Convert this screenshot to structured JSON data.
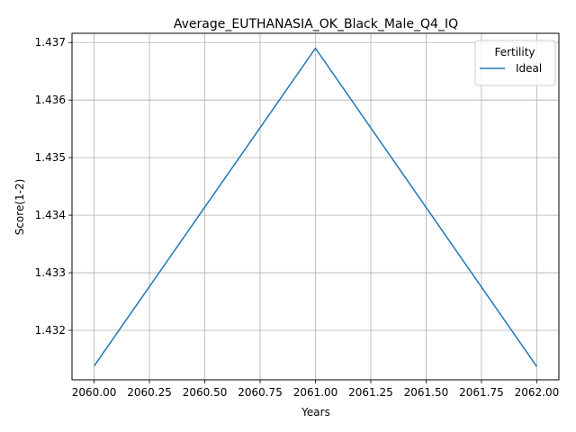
{
  "chart_data": {
    "type": "line",
    "title": "Average_EUTHANASIA_OK_Black_Male_Q4_IQ",
    "xlabel": "Years",
    "ylabel": "Score(1-2)",
    "xlim": [
      2059.9,
      2062.1
    ],
    "ylim": [
      1.43114,
      1.43716
    ],
    "x_ticks": [
      2060.0,
      2060.25,
      2060.5,
      2060.75,
      2061.0,
      2061.25,
      2061.5,
      2061.75,
      2062.0
    ],
    "x_tick_labels": [
      "2060.00",
      "2060.25",
      "2060.50",
      "2060.75",
      "2061.00",
      "2061.25",
      "2061.50",
      "2061.75",
      "2062.00"
    ],
    "y_ticks": [
      1.432,
      1.433,
      1.434,
      1.435,
      1.436,
      1.437
    ],
    "y_tick_labels": [
      "1.432",
      "1.433",
      "1.434",
      "1.435",
      "1.436",
      "1.437"
    ],
    "grid": true,
    "legend": {
      "title": "Fertility",
      "placement": "top-right"
    },
    "series": [
      {
        "name": "Ideal",
        "color": "#1f77b4",
        "x": [
          2060,
          2061,
          2062
        ],
        "y": [
          1.43138,
          1.4369,
          1.43137
        ]
      }
    ]
  }
}
